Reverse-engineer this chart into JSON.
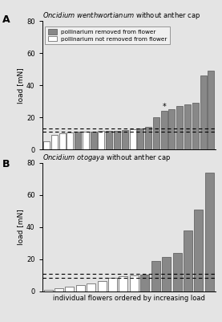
{
  "panel_A": {
    "title_italic": "Oncidium wenthwortianum",
    "title_normal": " without anther cap",
    "bars": [
      {
        "value": 5.0,
        "color": "white"
      },
      {
        "value": 9.0,
        "color": "white"
      },
      {
        "value": 10.0,
        "color": "white"
      },
      {
        "value": 10.5,
        "color": "white"
      },
      {
        "value": 11.0,
        "color": "gray"
      },
      {
        "value": 11.0,
        "color": "white"
      },
      {
        "value": 11.0,
        "color": "gray"
      },
      {
        "value": 11.5,
        "color": "white"
      },
      {
        "value": 11.5,
        "color": "gray"
      },
      {
        "value": 11.5,
        "color": "gray"
      },
      {
        "value": 12.0,
        "color": "gray"
      },
      {
        "value": 12.5,
        "color": "white"
      },
      {
        "value": 13.0,
        "color": "gray"
      },
      {
        "value": 14.0,
        "color": "gray"
      },
      {
        "value": 20.0,
        "color": "gray"
      },
      {
        "value": 24.0,
        "color": "gray"
      },
      {
        "value": 25.0,
        "color": "gray"
      },
      {
        "value": 27.0,
        "color": "gray"
      },
      {
        "value": 28.0,
        "color": "gray"
      },
      {
        "value": 29.0,
        "color": "gray"
      },
      {
        "value": 46.0,
        "color": "gray"
      },
      {
        "value": 49.0,
        "color": "gray"
      }
    ],
    "star_idx": 15,
    "dashed_lines": [
      11.0,
      13.0
    ],
    "ylim": [
      0,
      80
    ],
    "yticks": [
      0,
      20,
      40,
      60,
      80
    ],
    "ylabel": "load [mN]"
  },
  "panel_B": {
    "title_italic": "Oncidium otogaya",
    "title_normal": " without anther cap",
    "bars": [
      {
        "value": 1.0,
        "color": "white"
      },
      {
        "value": 2.0,
        "color": "white"
      },
      {
        "value": 3.0,
        "color": "white"
      },
      {
        "value": 4.0,
        "color": "white"
      },
      {
        "value": 5.0,
        "color": "white"
      },
      {
        "value": 6.5,
        "color": "white"
      },
      {
        "value": 8.5,
        "color": "white"
      },
      {
        "value": 9.5,
        "color": "white"
      },
      {
        "value": 10.0,
        "color": "white"
      },
      {
        "value": 10.5,
        "color": "gray"
      },
      {
        "value": 19.0,
        "color": "gray"
      },
      {
        "value": 21.5,
        "color": "gray"
      },
      {
        "value": 24.0,
        "color": "gray"
      },
      {
        "value": 38.0,
        "color": "gray"
      },
      {
        "value": 51.0,
        "color": "gray"
      },
      {
        "value": 74.0,
        "color": "gray"
      }
    ],
    "star_idx": null,
    "dashed_lines": [
      8.5,
      11.0
    ],
    "ylim": [
      0,
      80
    ],
    "yticks": [
      0,
      20,
      40,
      60,
      80
    ],
    "ylabel": "load [mN]"
  },
  "xlabel": "individual flowers ordered by increasing load",
  "legend_gray_label": "pollinarium removed from flower",
  "legend_white_label": "pollinarium not removed from flower",
  "bar_gray_color": "#888888",
  "bar_white_color": "#ffffff",
  "bar_edge_color": "#555555",
  "background_color": "#e4e4e4",
  "label_A": "A",
  "label_B": "B",
  "fig_width": 2.77,
  "fig_height": 4.01,
  "dpi": 100
}
